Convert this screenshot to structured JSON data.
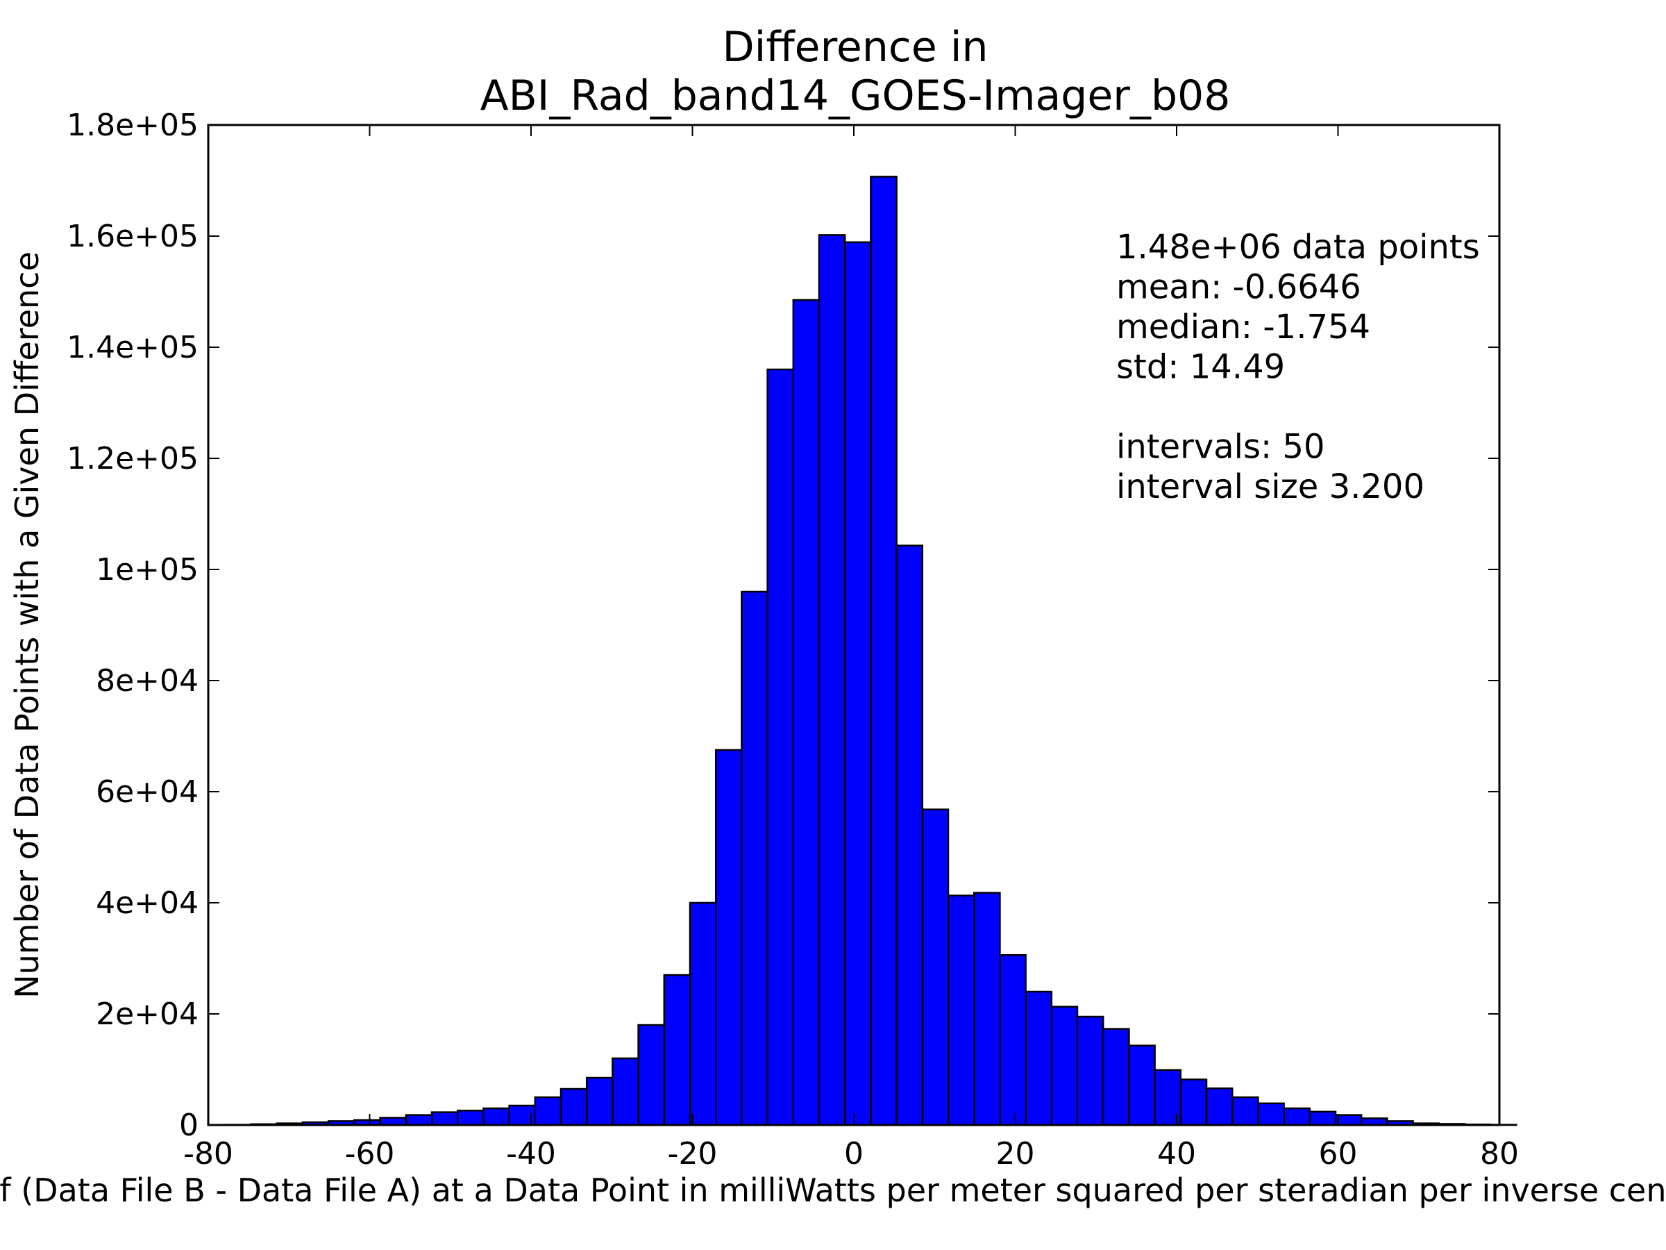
{
  "chart_data": {
    "type": "bar",
    "title": [
      "Difference in",
      "ABI_Rad_band14_GOES-Imager_b08"
    ],
    "xlabel": "Value of (Data File B - Data File A) at a Data Point in milliWatts per meter squared per steradian per inverse centimeter",
    "ylabel": "Number of Data Points with a Given Difference",
    "xlim": [
      -80,
      80
    ],
    "ylim": [
      0,
      180000
    ],
    "x_ticks": [
      "-80",
      "-60",
      "-40",
      "-20",
      "0",
      "20",
      "40",
      "60",
      "80"
    ],
    "y_ticks": [
      "0",
      "2e+04",
      "4e+04",
      "6e+04",
      "8e+04",
      "1e+05",
      "1.2e+05",
      "1.4e+05",
      "1.6e+05",
      "1.8e+05"
    ],
    "bin_start": -77.9,
    "bin_width": 3.2,
    "values": [
      50,
      150,
      300,
      500,
      700,
      900,
      1300,
      1800,
      2300,
      2600,
      3000,
      3500,
      5000,
      6500,
      8500,
      12000,
      18000,
      27000,
      40000,
      67500,
      96000,
      136000,
      148500,
      160200,
      158900,
      170700,
      104300,
      56800,
      41300,
      41800,
      30600,
      24000,
      21300,
      19500,
      17300,
      14300,
      9900,
      8200,
      6600,
      5000,
      3900,
      3000,
      2400,
      1800,
      1200,
      700,
      300,
      200,
      100,
      50
    ],
    "bar_color": "#0000ff",
    "edge_color": "#000000",
    "grid": false,
    "annotation": [
      "1.48e+06 data points",
      "mean: -0.6646",
      "median: -1.754",
      "std: 14.49",
      "",
      "intervals: 50",
      "interval size 3.200"
    ]
  }
}
